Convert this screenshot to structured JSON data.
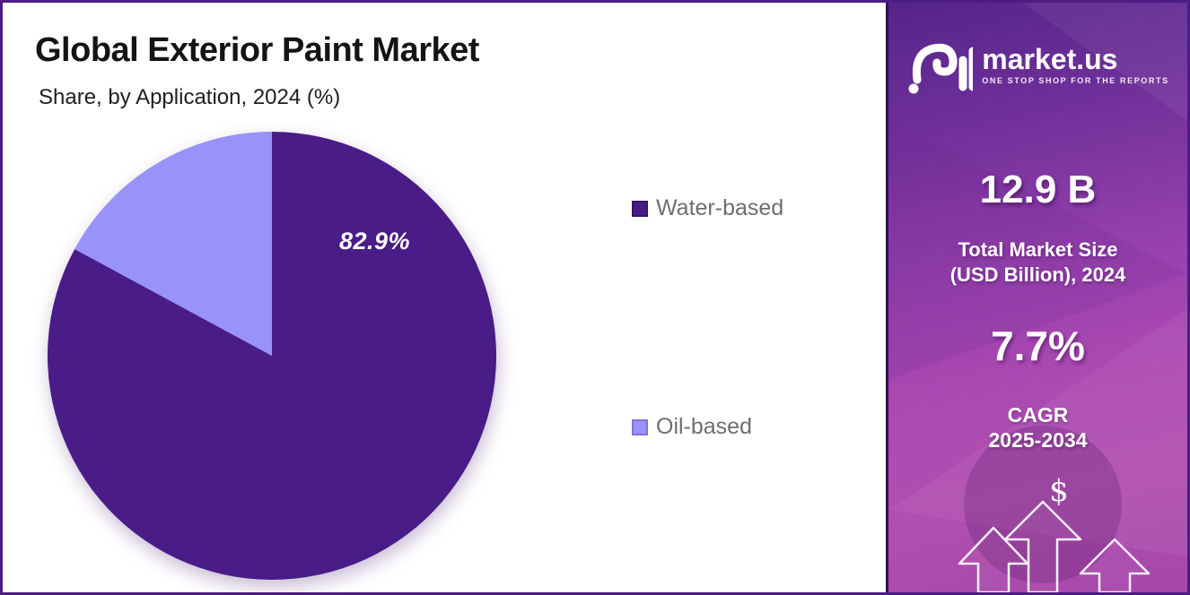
{
  "header": {
    "title": "Global Exterior Paint Market",
    "subtitle": "Share, by Application, 2024 (%)"
  },
  "chart_data": {
    "type": "pie",
    "title": "Global Exterior Paint Market",
    "subtitle": "Share, by Application, 2024 (%)",
    "unit": "%",
    "year": "2024",
    "start_angle_deg": 0,
    "direction": "clockwise",
    "legend_position": "right",
    "slices": [
      {
        "label": "Water-based",
        "value": 82.9,
        "data_label": "82.9%",
        "color": "#4A1C87",
        "swatch_border": "#38155f"
      },
      {
        "label": "Oil-based",
        "value": 17.1,
        "data_label": "",
        "color": "#9892FA",
        "swatch_border": "#7f73df"
      }
    ]
  },
  "sidebar": {
    "logo": {
      "brand": "market.us",
      "tagline": "ONE STOP SHOP FOR THE REPORTS"
    },
    "stat1": {
      "value": "12.9 B",
      "caption_line1": "Total Market Size",
      "caption_line2": "(USD Billion), 2024"
    },
    "stat2": {
      "value": "7.7%",
      "caption_line1": "CAGR",
      "caption_line2": "2025-2034"
    },
    "dollar_symbol": "$",
    "colors": {
      "gradient_top": "#55258a",
      "gradient_bottom": "#a647aa",
      "border": "#2f0e52"
    }
  },
  "frame": {
    "border_color": "#4c1d82",
    "background": "#ffffff"
  }
}
